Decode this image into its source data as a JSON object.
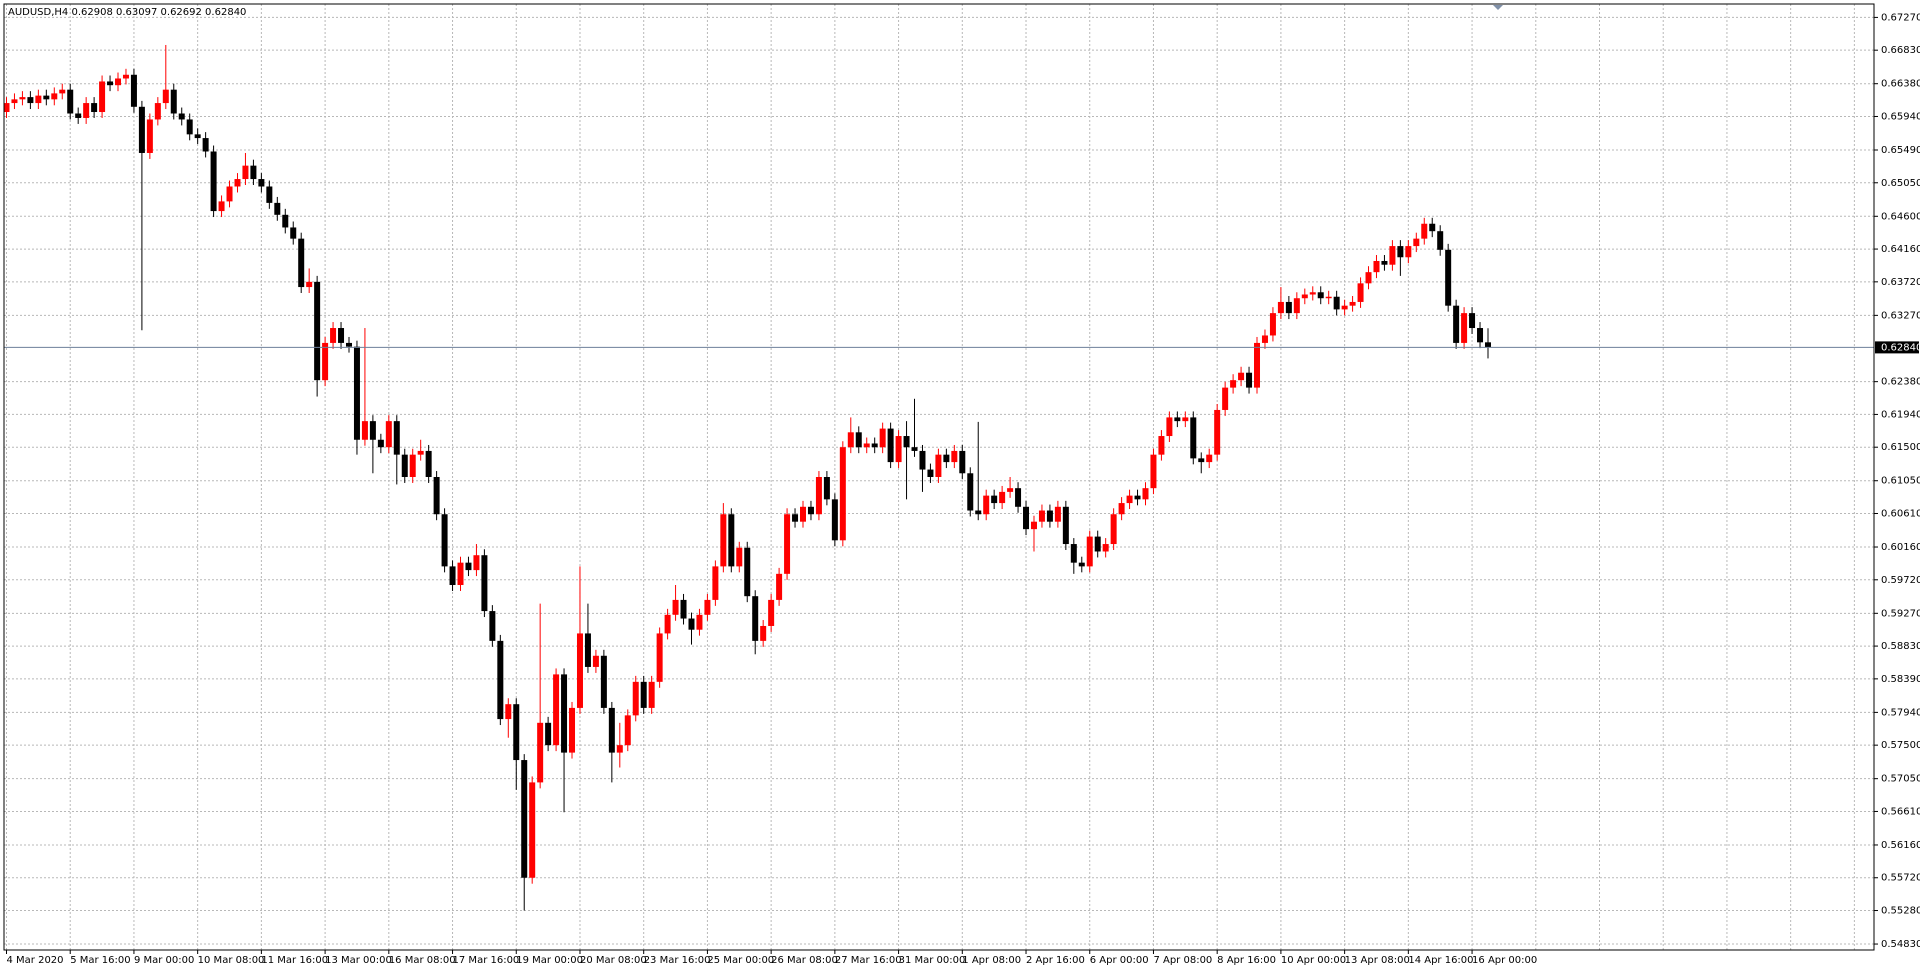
{
  "chart_data": {
    "type": "candlestick",
    "header": "AUDUSD,H4  0.62908 0.63097 0.62692 0.62840",
    "up_color": "#ff0000",
    "down_color": "#000000",
    "grid": true,
    "grid_color": "#b8b8b8",
    "price_line_color": "#6d7f99",
    "ylim": [
      0.5475,
      0.6745
    ],
    "yticks": [
      {
        "value": 0.6727,
        "label": "0.67270"
      },
      {
        "value": 0.6683,
        "label": "0.66830"
      },
      {
        "value": 0.6638,
        "label": "0.66380"
      },
      {
        "value": 0.6594,
        "label": "0.65940"
      },
      {
        "value": 0.6549,
        "label": "0.65490"
      },
      {
        "value": 0.6505,
        "label": "0.65050"
      },
      {
        "value": 0.646,
        "label": "0.64600"
      },
      {
        "value": 0.6416,
        "label": "0.64160"
      },
      {
        "value": 0.6372,
        "label": "0.63720"
      },
      {
        "value": 0.6327,
        "label": "0.63270"
      },
      {
        "value": 0.6238,
        "label": "0.62380"
      },
      {
        "value": 0.6194,
        "label": "0.61940"
      },
      {
        "value": 0.615,
        "label": "0.61500"
      },
      {
        "value": 0.6105,
        "label": "0.61050"
      },
      {
        "value": 0.6061,
        "label": "0.60610"
      },
      {
        "value": 0.6016,
        "label": "0.60160"
      },
      {
        "value": 0.5972,
        "label": "0.59720"
      },
      {
        "value": 0.5927,
        "label": "0.59270"
      },
      {
        "value": 0.5883,
        "label": "0.58830"
      },
      {
        "value": 0.5839,
        "label": "0.58390"
      },
      {
        "value": 0.5794,
        "label": "0.57940"
      },
      {
        "value": 0.575,
        "label": "0.57500"
      },
      {
        "value": 0.5705,
        "label": "0.57050"
      },
      {
        "value": 0.5661,
        "label": "0.56610"
      },
      {
        "value": 0.5616,
        "label": "0.56160"
      },
      {
        "value": 0.5572,
        "label": "0.55720"
      },
      {
        "value": 0.5528,
        "label": "0.55280"
      },
      {
        "value": 0.5483,
        "label": "0.54830"
      }
    ],
    "price_line": {
      "value": 0.6284,
      "label": "0.62840"
    },
    "categories": [
      "4 Mar 2020",
      null,
      null,
      null,
      null,
      null,
      null,
      null,
      "5 Mar 16:00",
      null,
      null,
      null,
      null,
      null,
      null,
      null,
      "9 Mar 00:00",
      null,
      null,
      null,
      null,
      null,
      null,
      null,
      "10 Mar 08:00",
      null,
      null,
      null,
      null,
      null,
      null,
      null,
      "11 Mar 16:00",
      null,
      null,
      null,
      null,
      null,
      null,
      null,
      "13 Mar 00:00",
      null,
      null,
      null,
      null,
      null,
      null,
      null,
      "16 Mar 08:00",
      null,
      null,
      null,
      null,
      null,
      null,
      null,
      "17 Mar 16:00",
      null,
      null,
      null,
      null,
      null,
      null,
      null,
      "19 Mar 00:00",
      null,
      null,
      null,
      null,
      null,
      null,
      null,
      "20 Mar 08:00",
      null,
      null,
      null,
      null,
      null,
      null,
      null,
      "23 Mar 16:00",
      null,
      null,
      null,
      null,
      null,
      null,
      null,
      "25 Mar 00:00",
      null,
      null,
      null,
      null,
      null,
      null,
      null,
      "26 Mar 08:00",
      null,
      null,
      null,
      null,
      null,
      null,
      null,
      "27 Mar 16:00",
      null,
      null,
      null,
      null,
      null,
      null,
      null,
      "31 Mar 00:00",
      null,
      null,
      null,
      null,
      null,
      null,
      null,
      "1 Apr 08:00",
      null,
      null,
      null,
      null,
      null,
      null,
      null,
      "2 Apr 16:00",
      null,
      null,
      null,
      null,
      null,
      null,
      null,
      "6 Apr 00:00",
      null,
      null,
      null,
      null,
      null,
      null,
      null,
      "7 Apr 08:00",
      null,
      null,
      null,
      null,
      null,
      null,
      null,
      "8 Apr 16:00",
      null,
      null,
      null,
      null,
      null,
      null,
      null,
      "10 Apr 00:00",
      null,
      null,
      null,
      null,
      null,
      null,
      null,
      "13 Apr 08:00",
      null,
      null,
      null,
      null,
      null,
      null,
      null,
      "14 Apr 16:00",
      null,
      null,
      null,
      null,
      null,
      null,
      null,
      "16 Apr 00:00",
      null,
      null
    ],
    "open": [
      0.66,
      0.6612,
      0.6617,
      0.662,
      0.6612,
      0.6622,
      0.6617,
      0.6625,
      0.663,
      0.6598,
      0.6592,
      0.6612,
      0.66,
      0.6641,
      0.6636,
      0.6645,
      0.665,
      0.6607,
      0.6545,
      0.659,
      0.6612,
      0.663,
      0.6598,
      0.659,
      0.657,
      0.6565,
      0.6547,
      0.6467,
      0.648,
      0.65,
      0.651,
      0.6528,
      0.651,
      0.65,
      0.6478,
      0.6462,
      0.6445,
      0.643,
      0.6365,
      0.6372,
      0.624,
      0.629,
      0.631,
      0.629,
      0.6285,
      0.616,
      0.6185,
      0.616,
      0.615,
      0.6185,
      0.614,
      0.611,
      0.614,
      0.6145,
      0.611,
      0.606,
      0.599,
      0.5965,
      0.5995,
      0.5985,
      0.6005,
      0.593,
      0.589,
      0.5785,
      0.5805,
      0.573,
      0.5572,
      0.57,
      0.578,
      0.575,
      0.5845,
      0.574,
      0.58,
      0.59,
      0.5855,
      0.587,
      0.58,
      0.574,
      0.575,
      0.579,
      0.5835,
      0.58,
      0.5835,
      0.59,
      0.5925,
      0.5945,
      0.592,
      0.5905,
      0.5925,
      0.5945,
      0.599,
      0.606,
      0.599,
      0.6015,
      0.595,
      0.589,
      0.591,
      0.5945,
      0.598,
      0.606,
      0.605,
      0.607,
      0.606,
      0.611,
      0.608,
      0.6025,
      0.615,
      0.617,
      0.615,
      0.6155,
      0.615,
      0.6175,
      0.613,
      0.6165,
      0.615,
      0.6145,
      0.612,
      0.611,
      0.614,
      0.613,
      0.6145,
      0.6115,
      0.6065,
      0.606,
      0.6085,
      0.6075,
      0.609,
      0.6095,
      0.607,
      0.604,
      0.605,
      0.6065,
      0.605,
      0.607,
      0.602,
      0.5995,
      0.599,
      0.603,
      0.601,
      0.602,
      0.606,
      0.6075,
      0.6085,
      0.608,
      0.6095,
      0.614,
      0.6165,
      0.619,
      0.6185,
      0.619,
      0.6135,
      0.613,
      0.614,
      0.62,
      0.623,
      0.624,
      0.625,
      0.623,
      0.629,
      0.63,
      0.633,
      0.6345,
      0.633,
      0.635,
      0.6355,
      0.6358,
      0.635,
      0.6352,
      0.6335,
      0.634,
      0.6345,
      0.637,
      0.6385,
      0.64,
      0.6395,
      0.642,
      0.6405,
      0.642,
      0.643,
      0.645,
      0.644,
      0.6415,
      0.634,
      0.629,
      0.633,
      0.631,
      0.62908
    ],
    "high": [
      0.662,
      0.6625,
      0.6628,
      0.6628,
      0.663,
      0.663,
      0.6633,
      0.6638,
      0.6638,
      0.6606,
      0.662,
      0.662,
      0.6649,
      0.6649,
      0.6653,
      0.6658,
      0.6658,
      0.6615,
      0.6598,
      0.662,
      0.669,
      0.6638,
      0.6606,
      0.6598,
      0.6578,
      0.6573,
      0.6555,
      0.6488,
      0.6508,
      0.6518,
      0.6545,
      0.6536,
      0.6518,
      0.6508,
      0.6486,
      0.647,
      0.6453,
      0.6438,
      0.639,
      0.638,
      0.6298,
      0.6318,
      0.6318,
      0.6298,
      0.6293,
      0.631,
      0.6193,
      0.6168,
      0.6193,
      0.6193,
      0.6148,
      0.6148,
      0.616,
      0.6153,
      0.6118,
      0.6068,
      0.5998,
      0.6003,
      0.6003,
      0.602,
      0.6013,
      0.5938,
      0.5898,
      0.5813,
      0.5813,
      0.5738,
      0.5708,
      0.594,
      0.5788,
      0.5853,
      0.5853,
      0.5808,
      0.599,
      0.594,
      0.5878,
      0.5878,
      0.5808,
      0.578,
      0.5798,
      0.5843,
      0.5843,
      0.5843,
      0.5908,
      0.5933,
      0.5965,
      0.5953,
      0.5928,
      0.5933,
      0.5953,
      0.5998,
      0.6075,
      0.6068,
      0.6023,
      0.6023,
      0.5958,
      0.5918,
      0.5953,
      0.5988,
      0.6068,
      0.6068,
      0.6078,
      0.6078,
      0.6118,
      0.6118,
      0.6088,
      0.6158,
      0.619,
      0.6178,
      0.6163,
      0.6163,
      0.6183,
      0.6183,
      0.6173,
      0.6185,
      0.6215,
      0.6153,
      0.6128,
      0.6148,
      0.6148,
      0.6153,
      0.6153,
      0.6123,
      0.6184,
      0.6093,
      0.6093,
      0.6098,
      0.611,
      0.6103,
      0.6078,
      0.6058,
      0.6073,
      0.6073,
      0.6078,
      0.6078,
      0.6028,
      0.6003,
      0.6038,
      0.6038,
      0.6028,
      0.6068,
      0.6083,
      0.6093,
      0.6093,
      0.6103,
      0.6148,
      0.6173,
      0.6198,
      0.6198,
      0.6198,
      0.6198,
      0.6143,
      0.6148,
      0.6208,
      0.6238,
      0.6248,
      0.6258,
      0.6258,
      0.6298,
      0.6308,
      0.6338,
      0.6365,
      0.6353,
      0.6358,
      0.6363,
      0.6366,
      0.6366,
      0.636,
      0.636,
      0.6348,
      0.6353,
      0.6378,
      0.6393,
      0.6408,
      0.6408,
      0.6428,
      0.6428,
      0.6428,
      0.6438,
      0.6458,
      0.6458,
      0.6448,
      0.6423,
      0.6348,
      0.6338,
      0.6338,
      0.6318,
      0.63097
    ],
    "low": [
      0.6592,
      0.6604,
      0.6609,
      0.6604,
      0.6604,
      0.6609,
      0.6609,
      0.6617,
      0.659,
      0.6584,
      0.6584,
      0.6592,
      0.6592,
      0.6628,
      0.6628,
      0.6637,
      0.6599,
      0.6307,
      0.6537,
      0.6582,
      0.6604,
      0.659,
      0.6582,
      0.6562,
      0.6557,
      0.6539,
      0.6459,
      0.6459,
      0.6472,
      0.6492,
      0.6502,
      0.6502,
      0.6492,
      0.647,
      0.6454,
      0.6437,
      0.6422,
      0.6357,
      0.6357,
      0.6218,
      0.6232,
      0.6282,
      0.6282,
      0.6277,
      0.614,
      0.6152,
      0.6115,
      0.6142,
      0.6142,
      0.61,
      0.6102,
      0.6102,
      0.6132,
      0.6102,
      0.6052,
      0.5982,
      0.5957,
      0.5957,
      0.5977,
      0.5977,
      0.5922,
      0.5882,
      0.5777,
      0.576,
      0.569,
      0.5528,
      0.5564,
      0.5692,
      0.5742,
      0.5742,
      0.566,
      0.5732,
      0.5792,
      0.5847,
      0.5847,
      0.5792,
      0.57,
      0.572,
      0.5742,
      0.5782,
      0.5792,
      0.5792,
      0.5827,
      0.5892,
      0.5917,
      0.5912,
      0.5885,
      0.5897,
      0.5917,
      0.5937,
      0.5982,
      0.5982,
      0.5982,
      0.5942,
      0.5872,
      0.5882,
      0.5902,
      0.5937,
      0.5972,
      0.6042,
      0.6042,
      0.6052,
      0.6052,
      0.6072,
      0.6017,
      0.6017,
      0.6142,
      0.6142,
      0.6142,
      0.6142,
      0.6142,
      0.6122,
      0.6122,
      0.608,
      0.6137,
      0.609,
      0.6102,
      0.6102,
      0.6122,
      0.6122,
      0.6107,
      0.6057,
      0.6052,
      0.6052,
      0.6067,
      0.6067,
      0.6082,
      0.6062,
      0.6032,
      0.601,
      0.6042,
      0.6042,
      0.6042,
      0.6012,
      0.598,
      0.5982,
      0.5982,
      0.6002,
      0.6002,
      0.6012,
      0.6052,
      0.6067,
      0.6072,
      0.6072,
      0.6087,
      0.6132,
      0.6157,
      0.6177,
      0.6177,
      0.6127,
      0.6115,
      0.6122,
      0.6132,
      0.6192,
      0.6222,
      0.6232,
      0.6222,
      0.6222,
      0.6282,
      0.6292,
      0.6322,
      0.6322,
      0.6322,
      0.6342,
      0.6347,
      0.6342,
      0.6342,
      0.6327,
      0.6327,
      0.6332,
      0.6337,
      0.6362,
      0.6377,
      0.6387,
      0.6387,
      0.638,
      0.6397,
      0.6412,
      0.6422,
      0.6432,
      0.6407,
      0.6332,
      0.6282,
      0.6282,
      0.6302,
      0.6283,
      0.62692
    ],
    "close": [
      0.6612,
      0.6617,
      0.662,
      0.6612,
      0.6622,
      0.6617,
      0.6625,
      0.663,
      0.6598,
      0.6592,
      0.6612,
      0.66,
      0.6641,
      0.6636,
      0.6645,
      0.665,
      0.6607,
      0.6545,
      0.659,
      0.6612,
      0.663,
      0.6598,
      0.659,
      0.657,
      0.6565,
      0.6547,
      0.6467,
      0.648,
      0.65,
      0.651,
      0.6528,
      0.651,
      0.65,
      0.6478,
      0.6462,
      0.6445,
      0.643,
      0.6365,
      0.6372,
      0.624,
      0.629,
      0.631,
      0.629,
      0.6285,
      0.616,
      0.6185,
      0.616,
      0.615,
      0.6185,
      0.614,
      0.611,
      0.614,
      0.6145,
      0.611,
      0.606,
      0.599,
      0.5965,
      0.5995,
      0.5985,
      0.6005,
      0.593,
      0.589,
      0.5785,
      0.5805,
      0.573,
      0.5572,
      0.57,
      0.578,
      0.575,
      0.5845,
      0.574,
      0.58,
      0.59,
      0.5855,
      0.587,
      0.58,
      0.574,
      0.575,
      0.579,
      0.5835,
      0.58,
      0.5835,
      0.59,
      0.5925,
      0.5945,
      0.592,
      0.5905,
      0.5925,
      0.5945,
      0.599,
      0.606,
      0.599,
      0.6015,
      0.595,
      0.589,
      0.591,
      0.5945,
      0.598,
      0.606,
      0.605,
      0.607,
      0.606,
      0.611,
      0.608,
      0.6025,
      0.615,
      0.617,
      0.615,
      0.6155,
      0.615,
      0.6175,
      0.613,
      0.6165,
      0.615,
      0.6145,
      0.612,
      0.611,
      0.614,
      0.613,
      0.6145,
      0.6115,
      0.6065,
      0.606,
      0.6085,
      0.6075,
      0.609,
      0.6095,
      0.607,
      0.604,
      0.605,
      0.6065,
      0.605,
      0.607,
      0.602,
      0.5995,
      0.599,
      0.603,
      0.601,
      0.602,
      0.606,
      0.6075,
      0.6085,
      0.608,
      0.6095,
      0.614,
      0.6165,
      0.619,
      0.6185,
      0.619,
      0.6135,
      0.613,
      0.614,
      0.62,
      0.623,
      0.624,
      0.625,
      0.623,
      0.629,
      0.63,
      0.633,
      0.6345,
      0.633,
      0.635,
      0.6355,
      0.6358,
      0.635,
      0.6352,
      0.6335,
      0.634,
      0.6345,
      0.637,
      0.6385,
      0.64,
      0.6395,
      0.642,
      0.6405,
      0.642,
      0.643,
      0.645,
      0.644,
      0.6415,
      0.634,
      0.629,
      0.633,
      0.631,
      0.62908,
      0.6284
    ]
  }
}
